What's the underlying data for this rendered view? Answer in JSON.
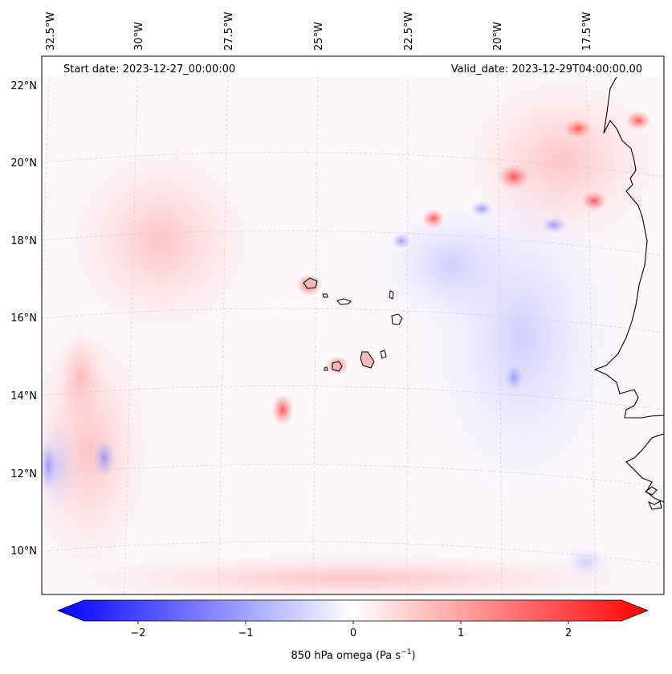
{
  "header": {
    "start_date": "Start date: 2023-12-27_00:00:00",
    "valid_date": "Valid_date: 2023-12-29T04:00:00.00"
  },
  "map": {
    "longitude_labels": [
      "32.5°W",
      "30°W",
      "27.5°W",
      "25°W",
      "22.5°W",
      "20°W",
      "17.5°W"
    ],
    "latitude_labels": [
      "22°N",
      "20°N",
      "18°N",
      "16°N",
      "14°N",
      "12°N",
      "10°N"
    ],
    "features": [
      "Cape Verde islands",
      "West African coastline (Mauritania, Senegal, Gambia, Guinea-Bissau)"
    ]
  },
  "colorbar": {
    "tick_labels": [
      "−2",
      "−1",
      "0",
      "1",
      "2"
    ],
    "label": "850 hPa omega (Pa s",
    "label_exp": "−1",
    "label_close": ")",
    "colors": {
      "negative": "#0000ff",
      "zero": "#ffffff",
      "positive": "#ff0000"
    }
  }
}
